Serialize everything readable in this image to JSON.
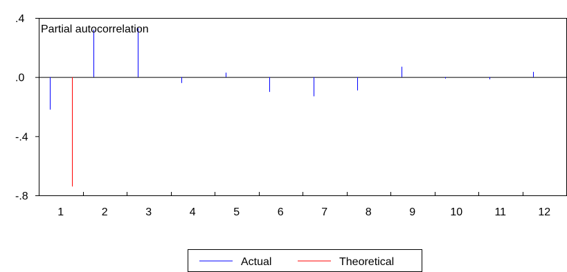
{
  "chart_data": {
    "type": "bar",
    "title": "Partial autocorrelation",
    "categories": [
      "1",
      "2",
      "3",
      "4",
      "5",
      "6",
      "7",
      "8",
      "9",
      "10",
      "11",
      "12"
    ],
    "yticks": [
      ".4",
      ".0",
      "-.4",
      "-.8"
    ],
    "ylim": [
      -0.8,
      0.4
    ],
    "grid": false,
    "legend_position": "bottom-center",
    "series": [
      {
        "name": "Actual",
        "color": "#0000ff",
        "values": [
          -0.22,
          0.32,
          0.33,
          -0.04,
          0.03,
          -0.1,
          -0.13,
          -0.09,
          0.07,
          -0.01,
          -0.015,
          0.035
        ]
      },
      {
        "name": "Theoretical",
        "color": "#ff0000",
        "values": [
          -0.74,
          0.0,
          0.0,
          0.0,
          0.0,
          0.0,
          0.0,
          0.0,
          0.0,
          0.0,
          0.0,
          0.0
        ]
      }
    ]
  }
}
